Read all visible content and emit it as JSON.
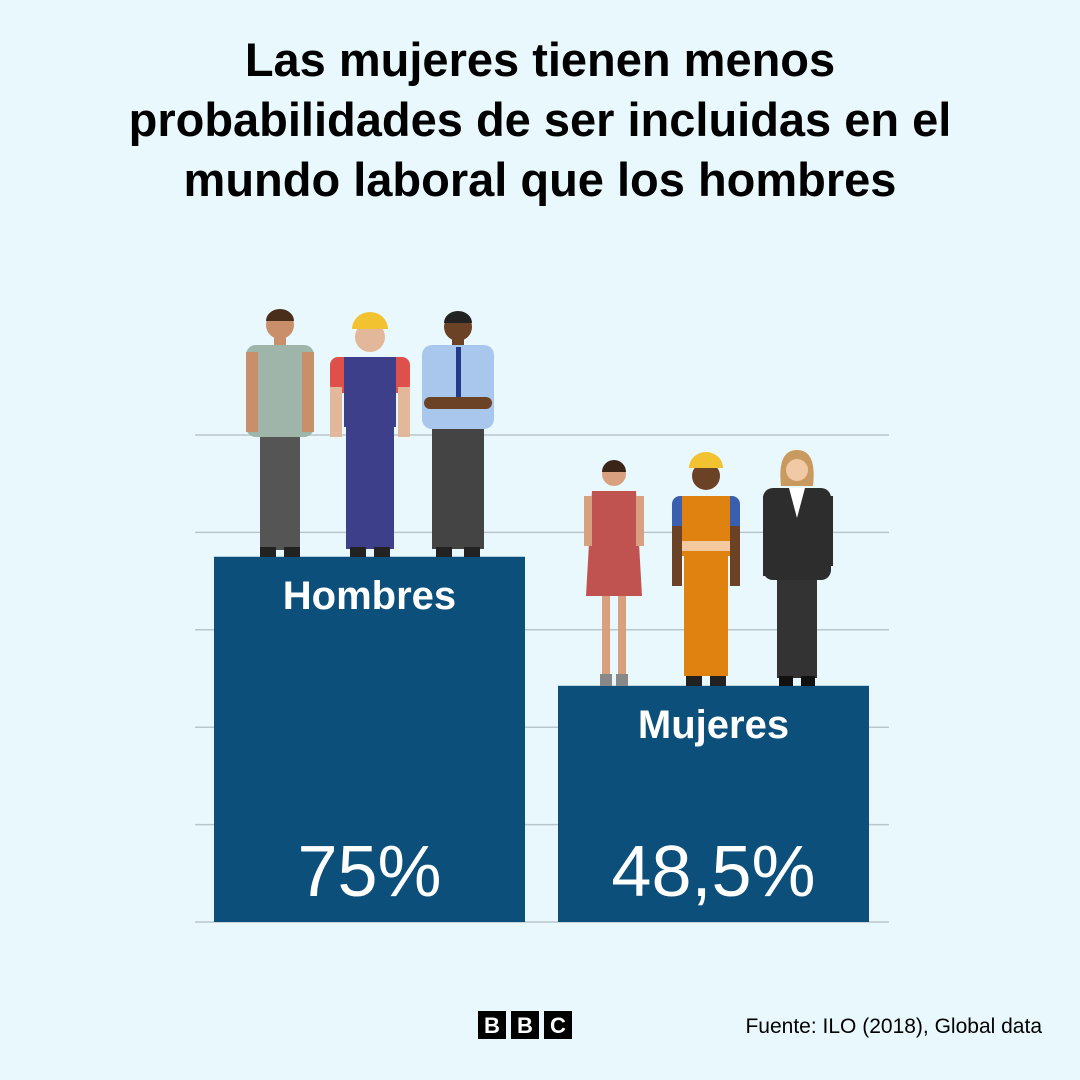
{
  "chart_data": {
    "type": "bar",
    "title": "Las mujeres tienen menos probabilidades de ser incluidas en el mundo laboral que los hombres",
    "categories": [
      "Hombres",
      "Mujeres"
    ],
    "values": [
      75,
      48.5
    ],
    "value_labels": [
      "75%",
      "48,5%"
    ],
    "color": "#0b4f7a",
    "ylim": [
      0,
      100
    ],
    "yticks": [
      0,
      20,
      40,
      60,
      80,
      100
    ],
    "grid": true,
    "source": "Fuente: ILO (2018), Global data",
    "logo": [
      "B",
      "B",
      "C"
    ]
  }
}
